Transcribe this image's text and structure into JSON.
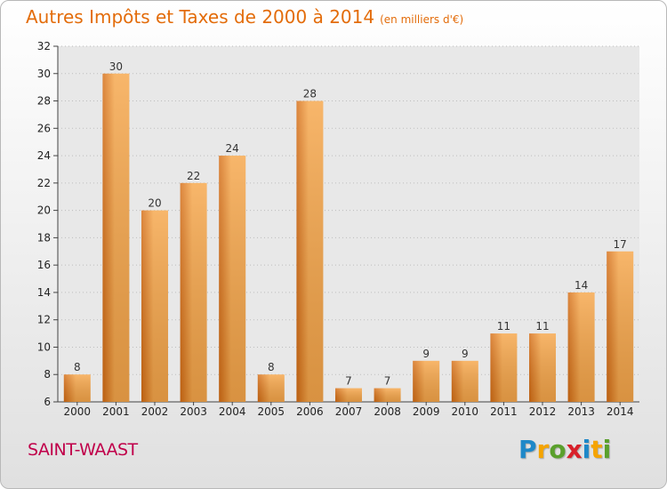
{
  "title": "Autres Impôts et Taxes de 2000 à 2014",
  "subtitle": "(en milliers d'€)",
  "commune": "SAINT-WAAST",
  "logo": {
    "text": "Proxiti",
    "letters": [
      {
        "ch": "P",
        "color": "#1e88c8"
      },
      {
        "ch": "r",
        "color": "#f5a400"
      },
      {
        "ch": "o",
        "color": "#5aa02c"
      },
      {
        "ch": "x",
        "color": "#d8202a"
      },
      {
        "ch": "i",
        "color": "#1e88c8"
      },
      {
        "ch": "t",
        "color": "#f5a400"
      },
      {
        "ch": "i",
        "color": "#5aa02c"
      }
    ]
  },
  "colors": {
    "bar_light": "#f6a64a",
    "bar_dark": "#d46c14",
    "title": "#e36c0a",
    "commune": "#c0004a"
  },
  "chart_data": {
    "type": "bar",
    "title": "Autres Impôts et Taxes de 2000 à 2014",
    "subtitle": "(en milliers d'€)",
    "xlabel": "",
    "ylabel": "",
    "categories": [
      "2000",
      "2001",
      "2002",
      "2003",
      "2004",
      "2005",
      "2006",
      "2007",
      "2008",
      "2009",
      "2010",
      "2011",
      "2012",
      "2013",
      "2014"
    ],
    "values": [
      8,
      30,
      20,
      22,
      24,
      8,
      28,
      7,
      7,
      9,
      9,
      11,
      11,
      14,
      17
    ],
    "ylim": [
      6,
      32
    ],
    "yticks": [
      6,
      8,
      10,
      12,
      14,
      16,
      18,
      20,
      22,
      24,
      26,
      28,
      30,
      32
    ],
    "grid": "horizontal dotted",
    "legend": "none"
  }
}
